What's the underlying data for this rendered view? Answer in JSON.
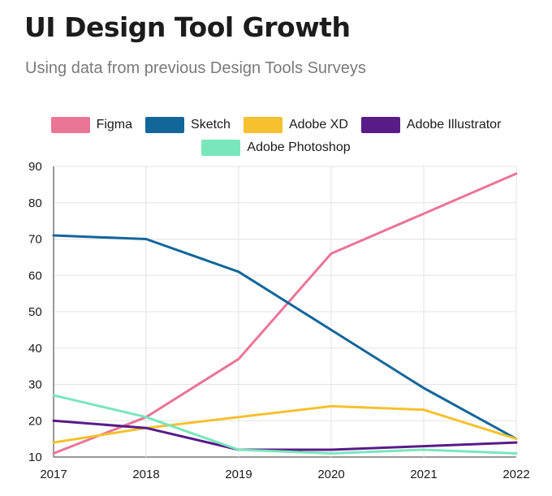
{
  "header": {
    "title": "UI Design Tool Growth",
    "subtitle": "Using data from previous Design Tools Surveys"
  },
  "chart_data": {
    "type": "line",
    "title": "UI Design Tool Growth",
    "subtitle": "Using data from previous Design Tools Surveys",
    "xlabel": "",
    "ylabel": "",
    "categories": [
      "2017",
      "2018",
      "2019",
      "2020",
      "2021",
      "2022"
    ],
    "ylim": [
      10,
      90
    ],
    "yticks": [
      10,
      20,
      30,
      40,
      50,
      60,
      70,
      80,
      90
    ],
    "grid": true,
    "legend_placement": "top-center",
    "series": [
      {
        "name": "Figma",
        "color": "#ea7597",
        "values": [
          11,
          21,
          37,
          66,
          77,
          88
        ]
      },
      {
        "name": "Sketch",
        "color": "#11669a",
        "values": [
          71,
          70,
          61,
          45,
          29,
          15
        ]
      },
      {
        "name": "Adobe XD",
        "color": "#f5c12e",
        "values": [
          14,
          18,
          21,
          24,
          23,
          15
        ]
      },
      {
        "name": "Adobe Illustrator",
        "color": "#581b88",
        "values": [
          20,
          18,
          12,
          12,
          13,
          14
        ]
      },
      {
        "name": "Adobe Photoshop",
        "color": "#79e6bc",
        "values": [
          27,
          21,
          12,
          11,
          12,
          11
        ]
      }
    ]
  }
}
